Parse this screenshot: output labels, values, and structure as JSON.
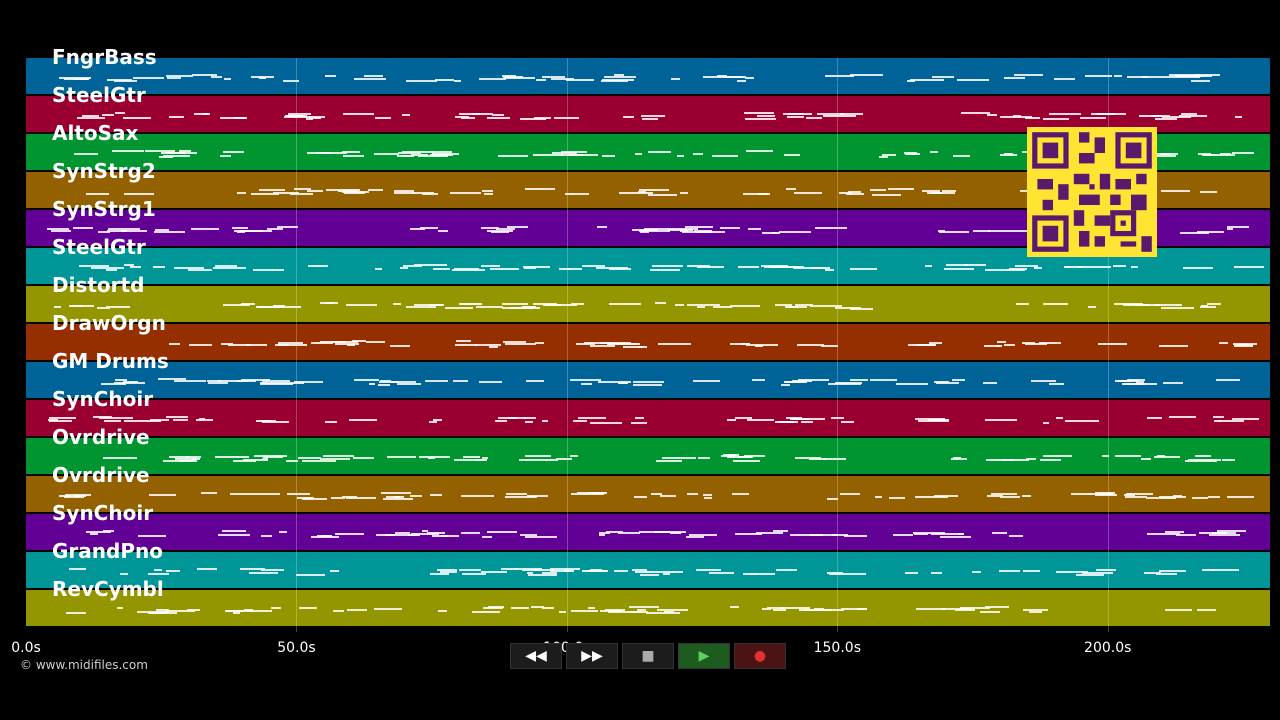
{
  "tracks": [
    {
      "name": "FngrBass",
      "color": "#006398"
    },
    {
      "name": "SteelGtr",
      "color": "#99002f"
    },
    {
      "name": "AltoSax",
      "color": "#009531"
    },
    {
      "name": "SynStrg2",
      "color": "#946100"
    },
    {
      "name": "SynStrg1",
      "color": "#620096"
    },
    {
      "name": "SteelGtr",
      "color": "#009596"
    },
    {
      "name": "Distortd",
      "color": "#949600"
    },
    {
      "name": "DrawOrgn",
      "color": "#962f00"
    },
    {
      "name": "GM Drums",
      "color": "#006398"
    },
    {
      "name": "SynChoir",
      "color": "#99002f"
    },
    {
      "name": "Ovrdrive",
      "color": "#009531"
    },
    {
      "name": "Ovrdrive",
      "color": "#946100"
    },
    {
      "name": "SynChoir",
      "color": "#620096"
    },
    {
      "name": "GrandPno",
      "color": "#009596"
    },
    {
      "name": "RevCymbl",
      "color": "#949600"
    }
  ],
  "timeline": {
    "ticks": [
      "0.0s",
      "50.0s",
      "100.0s",
      "150.0s",
      "200.0s"
    ],
    "tick_seconds": [
      0,
      50,
      100,
      150,
      200
    ],
    "max_seconds": 230
  },
  "copyright": "© www.midifiles.com",
  "transport": {
    "rewind": "◀◀",
    "forward": "▶▶",
    "stop": "■",
    "play": "▶",
    "record": "●"
  },
  "icons": {
    "rewind": "rewind-icon",
    "forward": "fast-forward-icon",
    "stop": "stop-icon",
    "play": "play-icon",
    "record": "record-icon",
    "qr": "qr-code-icon"
  }
}
